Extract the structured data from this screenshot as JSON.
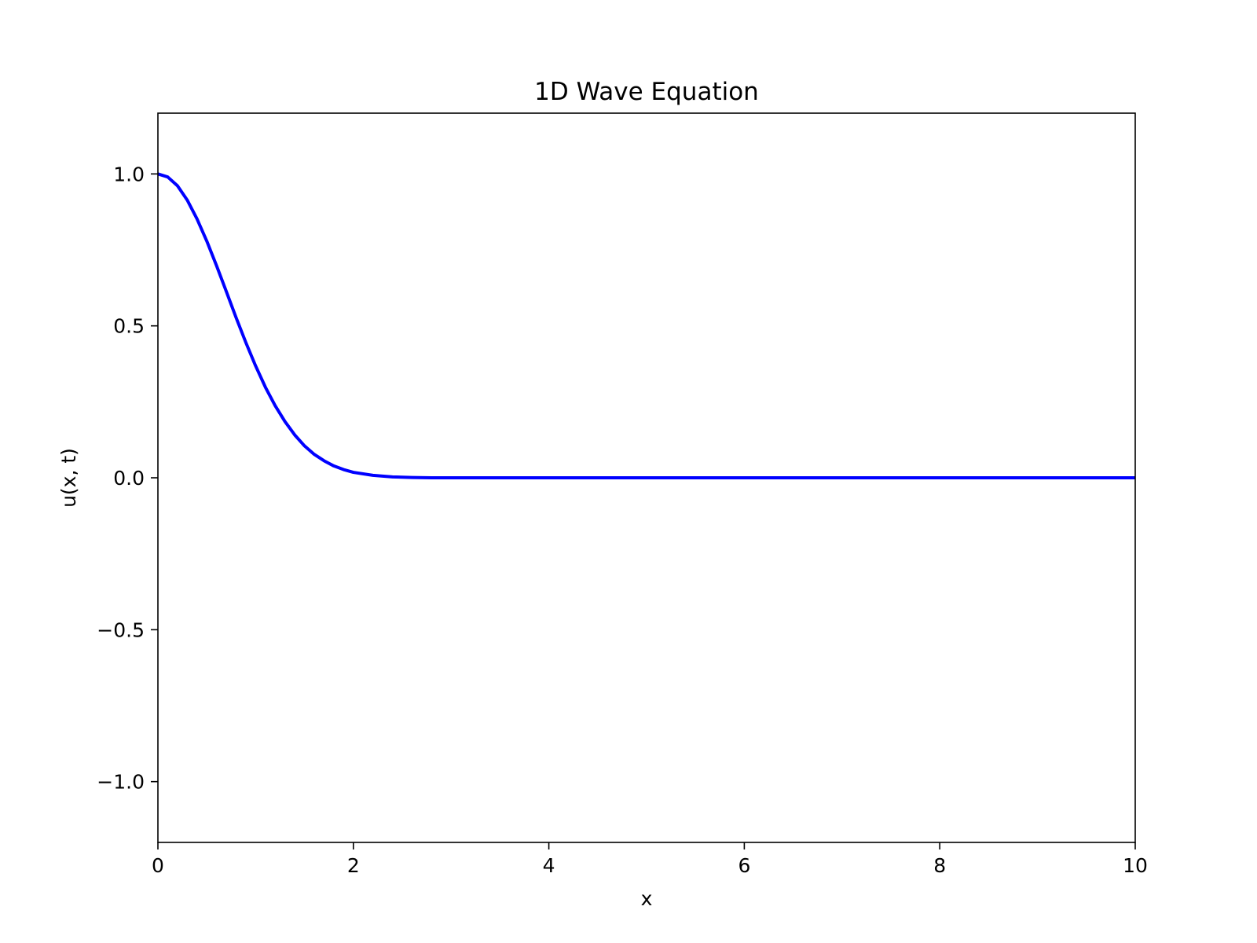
{
  "chart_data": {
    "type": "line",
    "title": "1D Wave Equation",
    "xlabel": "x",
    "ylabel": "u(x, t)",
    "xlim": [
      0,
      10
    ],
    "ylim": [
      -1.2,
      1.2
    ],
    "x_ticks": [
      0,
      2,
      4,
      6,
      8,
      10
    ],
    "x_tick_labels": [
      "0",
      "2",
      "4",
      "6",
      "8",
      "10"
    ],
    "y_ticks": [
      -1.0,
      -0.5,
      0.0,
      0.5,
      1.0
    ],
    "y_tick_labels": [
      "−1.0",
      "−0.5",
      "0.0",
      "0.5",
      "1.0"
    ],
    "grid": false,
    "legend": "none",
    "series": [
      {
        "color": "#0000ff",
        "x": [
          0,
          0.1,
          0.2,
          0.3,
          0.4,
          0.5,
          0.6,
          0.7,
          0.8,
          0.9,
          1.0,
          1.1,
          1.2,
          1.3,
          1.4,
          1.5,
          1.6,
          1.7,
          1.8,
          1.9,
          2.0,
          2.2,
          2.4,
          2.6,
          2.8,
          3.0,
          3.5,
          4.0,
          5.0,
          6.0,
          7.0,
          8.0,
          9.0,
          10.0
        ],
        "y": [
          1.0,
          0.99,
          0.961,
          0.914,
          0.852,
          0.779,
          0.698,
          0.613,
          0.527,
          0.445,
          0.368,
          0.298,
          0.237,
          0.185,
          0.141,
          0.105,
          0.077,
          0.056,
          0.039,
          0.027,
          0.018,
          0.008,
          0.003,
          0.001,
          0.0,
          0.0,
          0.0,
          0.0,
          0.0,
          0.0,
          0.0,
          0.0,
          0.0,
          0.0
        ]
      }
    ]
  }
}
